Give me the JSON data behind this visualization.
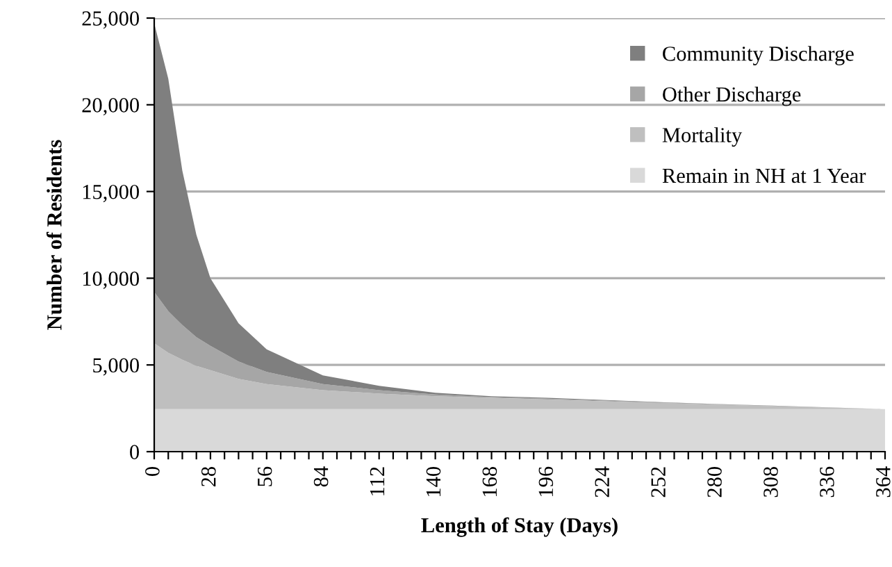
{
  "chart_data": {
    "type": "area",
    "stacked": true,
    "xlabel": "Length of Stay (Days)",
    "ylabel": "Number of Residents",
    "x": [
      0,
      7,
      14,
      21,
      28,
      42,
      56,
      84,
      112,
      140,
      168,
      196,
      252,
      308,
      364
    ],
    "series": [
      {
        "name": "Remain in NH at 1 Year",
        "color": "#d9d9d9",
        "values": [
          2450,
          2450,
          2450,
          2450,
          2450,
          2450,
          2450,
          2450,
          2450,
          2450,
          2450,
          2450,
          2450,
          2450,
          2450
        ]
      },
      {
        "name": "Mortality",
        "color": "#bfbfbf",
        "values": [
          3800,
          3250,
          2850,
          2500,
          2250,
          1750,
          1450,
          1100,
          900,
          750,
          650,
          550,
          350,
          170,
          0
        ]
      },
      {
        "name": "Other Discharge",
        "color": "#a6a6a6",
        "values": [
          2950,
          2400,
          2000,
          1650,
          1400,
          1000,
          700,
          350,
          200,
          100,
          50,
          50,
          30,
          20,
          0
        ]
      },
      {
        "name": "Community Discharge",
        "color": "#7f7f7f",
        "values": [
          15500,
          13400,
          8900,
          5900,
          3900,
          2200,
          1300,
          500,
          250,
          100,
          50,
          50,
          20,
          10,
          0
        ]
      }
    ],
    "xlim": [
      0,
      364
    ],
    "xticks": [
      0,
      {
        "value": 7,
        "label": null
      },
      {
        "value": 14,
        "label": null
      },
      {
        "value": 21,
        "label": null
      },
      28,
      {
        "value": 35,
        "label": null
      },
      {
        "value": 42,
        "label": null
      },
      {
        "value": 49,
        "label": null
      },
      56,
      {
        "value": 63,
        "label": null
      },
      {
        "value": 70,
        "label": null
      },
      {
        "value": 77,
        "label": null
      },
      84,
      {
        "value": 91,
        "label": null
      },
      {
        "value": 98,
        "label": null
      },
      {
        "value": 105,
        "label": null
      },
      112,
      {
        "value": 119,
        "label": null
      },
      {
        "value": 126,
        "label": null
      },
      {
        "value": 133,
        "label": null
      },
      140,
      {
        "value": 147,
        "label": null
      },
      {
        "value": 154,
        "label": null
      },
      {
        "value": 161,
        "label": null
      },
      168,
      {
        "value": 175,
        "label": null
      },
      {
        "value": 182,
        "label": null
      },
      {
        "value": 189,
        "label": null
      },
      196,
      {
        "value": 203,
        "label": null
      },
      {
        "value": 210,
        "label": null
      },
      {
        "value": 217,
        "label": null
      },
      224,
      {
        "value": 231,
        "label": null
      },
      {
        "value": 238,
        "label": null
      },
      {
        "value": 245,
        "label": null
      },
      252,
      {
        "value": 259,
        "label": null
      },
      {
        "value": 266,
        "label": null
      },
      {
        "value": 273,
        "label": null
      },
      280,
      {
        "value": 287,
        "label": null
      },
      {
        "value": 294,
        "label": null
      },
      {
        "value": 301,
        "label": null
      },
      308,
      {
        "value": 315,
        "label": null
      },
      {
        "value": 322,
        "label": null
      },
      {
        "value": 329,
        "label": null
      },
      336,
      {
        "value": 343,
        "label": null
      },
      {
        "value": 350,
        "label": null
      },
      {
        "value": 357,
        "label": null
      },
      364
    ],
    "ylim": [
      0,
      25000
    ],
    "yticks": [
      {
        "value": 0,
        "label": "0"
      },
      {
        "value": 5000,
        "label": "5,000"
      },
      {
        "value": 10000,
        "label": "10,000"
      },
      {
        "value": 15000,
        "label": "15,000"
      },
      {
        "value": 20000,
        "label": "20,000"
      },
      {
        "value": 25000,
        "label": "25,000"
      }
    ],
    "grid": "y",
    "legend": "top right"
  }
}
